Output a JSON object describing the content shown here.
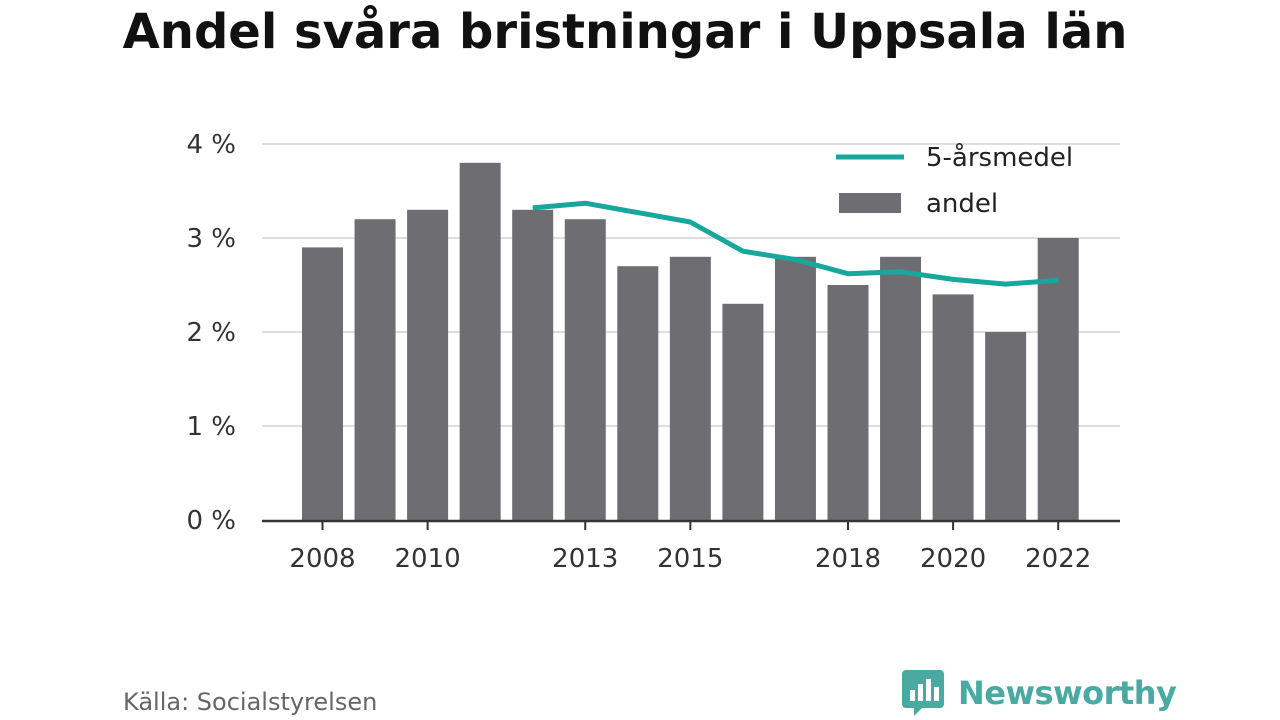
{
  "chart_data": {
    "type": "bar",
    "title": "Andel svåra bristningar i Uppsala län",
    "categories": [
      "2008",
      "2009",
      "2010",
      "2011",
      "2012",
      "2013",
      "2014",
      "2015",
      "2016",
      "2017",
      "2018",
      "2019",
      "2020",
      "2021",
      "2022"
    ],
    "series": [
      {
        "name": "andel",
        "type": "bar",
        "color": "#6e6d72",
        "values": [
          2.9,
          3.2,
          3.3,
          3.8,
          3.3,
          3.2,
          2.7,
          2.8,
          2.3,
          2.8,
          2.5,
          2.8,
          2.4,
          2.0,
          3.0
        ]
      },
      {
        "name": "5-årsmedel",
        "type": "line",
        "color": "#17a79c",
        "x": [
          "2012",
          "2013",
          "2014",
          "2015",
          "2016",
          "2017",
          "2018",
          "2019",
          "2020",
          "2021",
          "2022"
        ],
        "values": [
          3.32,
          3.37,
          3.27,
          3.17,
          2.86,
          2.77,
          2.62,
          2.64,
          2.56,
          2.51,
          2.55
        ]
      }
    ],
    "xtick_labels": [
      "2008",
      "2010",
      "2013",
      "2015",
      "2018",
      "2020",
      "2022"
    ],
    "ytick_labels": [
      "0 %",
      "1 %",
      "2 %",
      "3 %",
      "4 %"
    ],
    "yticks": [
      0,
      1,
      2,
      3,
      4
    ],
    "ylim": [
      0,
      4
    ],
    "xlabel": "",
    "ylabel": "",
    "grid": true,
    "legend": "top-right",
    "legend_entries": [
      {
        "label": "5-årsmedel",
        "kind": "line",
        "color": "#17a79c"
      },
      {
        "label": "andel",
        "kind": "bar",
        "color": "#6e6d72"
      }
    ]
  },
  "source": "Källa: Socialstyrelsen",
  "brand": {
    "name": "Newsworthy",
    "color": "#4aa9a0",
    "icon": "newsworthy-logo-icon"
  }
}
